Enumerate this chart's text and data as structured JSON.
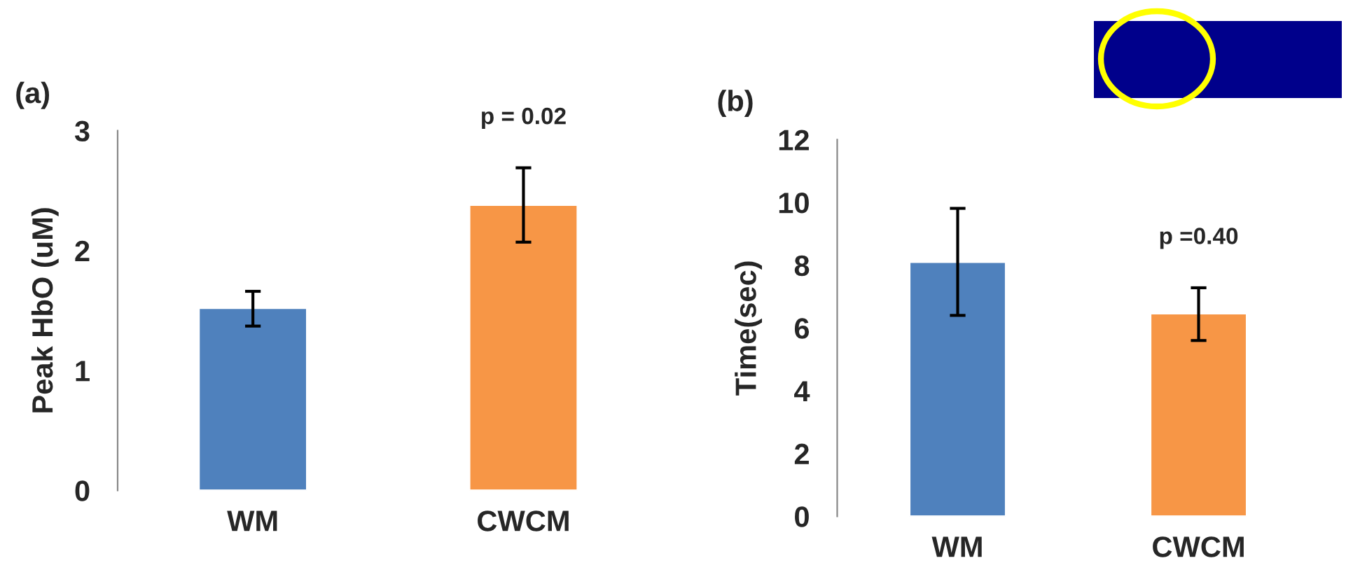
{
  "chart_data": [
    {
      "type": "bar",
      "title": "(a)",
      "ylabel": "Peak HbO (uM)",
      "categories": [
        "WM",
        "CWCM"
      ],
      "values": [
        1.52,
        2.38
      ],
      "colors": [
        "#4f81bd",
        "#f79646"
      ],
      "errors": [
        [
          1.37,
          1.66
        ],
        [
          2.07,
          2.69
        ]
      ],
      "ylim": [
        0,
        3
      ],
      "yticks": [
        0,
        1,
        2,
        3
      ],
      "grid": false,
      "annotations": [
        "p = 0.02"
      ]
    },
    {
      "type": "bar",
      "title": "(b)",
      "ylabel": "Time(sec)",
      "categories": [
        "WM",
        "CWCM"
      ],
      "values": [
        8.1,
        6.46
      ],
      "colors": [
        "#4f81bd",
        "#f79646"
      ],
      "errors": [
        [
          6.4,
          9.81
        ],
        [
          5.6,
          7.28
        ]
      ],
      "ylim": [
        0,
        12
      ],
      "yticks": [
        0,
        2,
        4,
        6,
        8,
        10,
        12
      ],
      "grid": false,
      "annotations": [
        "p =0.40"
      ]
    }
  ]
}
